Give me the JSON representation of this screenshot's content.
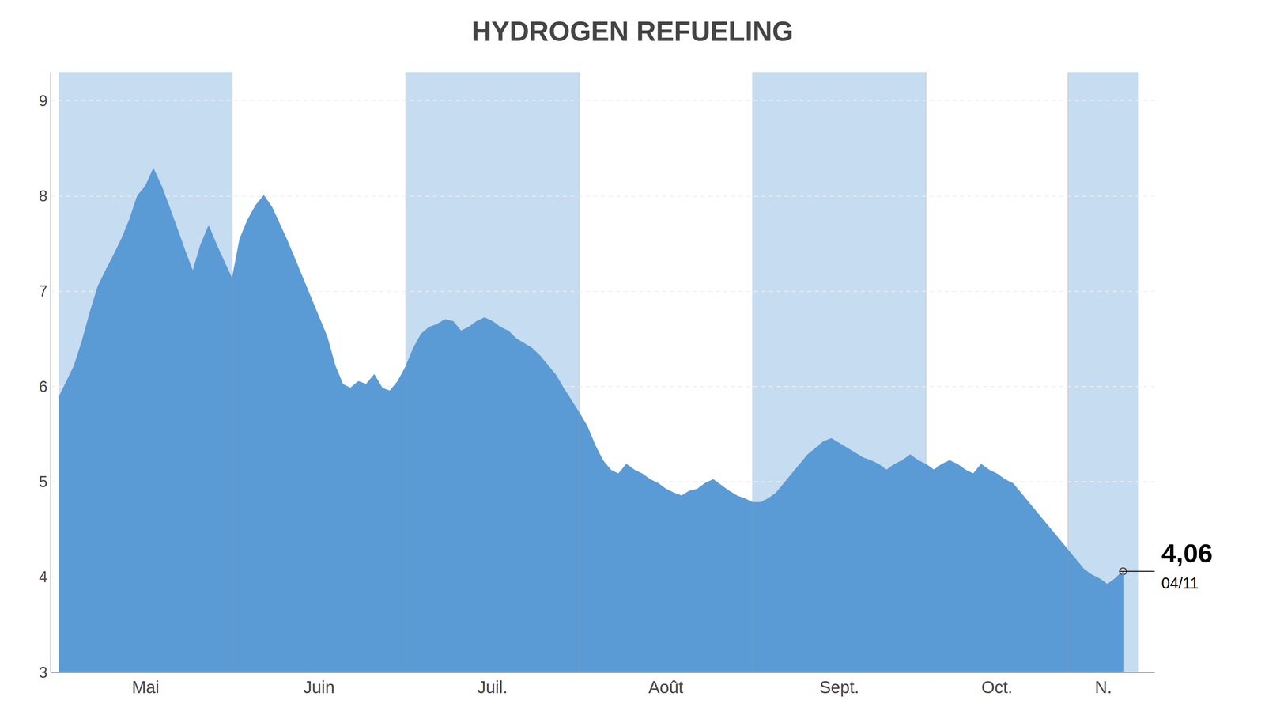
{
  "chart_data": {
    "type": "area",
    "title": "HYDROGEN REFUELING",
    "values": [
      5.88,
      6.05,
      6.22,
      6.48,
      6.78,
      7.05,
      7.22,
      7.38,
      7.55,
      7.75,
      8.0,
      8.1,
      8.28,
      8.1,
      7.88,
      7.65,
      7.42,
      7.2,
      7.48,
      7.68,
      7.48,
      7.3,
      7.12,
      7.55,
      7.75,
      7.9,
      8.0,
      7.88,
      7.7,
      7.52,
      7.32,
      7.12,
      6.92,
      6.72,
      6.52,
      6.22,
      6.02,
      5.98,
      6.05,
      6.02,
      6.12,
      5.98,
      5.95,
      6.05,
      6.2,
      6.4,
      6.55,
      6.62,
      6.65,
      6.7,
      6.68,
      6.58,
      6.62,
      6.68,
      6.72,
      6.68,
      6.62,
      6.58,
      6.5,
      6.45,
      6.4,
      6.32,
      6.22,
      6.12,
      5.98,
      5.85,
      5.72,
      5.58,
      5.38,
      5.22,
      5.12,
      5.08,
      5.18,
      5.12,
      5.08,
      5.02,
      4.98,
      4.92,
      4.88,
      4.85,
      4.9,
      4.92,
      4.98,
      5.02,
      4.96,
      4.9,
      4.85,
      4.82,
      4.78,
      4.78,
      4.82,
      4.88,
      4.98,
      5.08,
      5.18,
      5.28,
      5.35,
      5.42,
      5.45,
      5.4,
      5.35,
      5.3,
      5.25,
      5.22,
      5.18,
      5.12,
      5.18,
      5.22,
      5.28,
      5.22,
      5.18,
      5.12,
      5.18,
      5.22,
      5.18,
      5.12,
      5.08,
      5.18,
      5.12,
      5.08,
      5.02,
      4.98,
      4.88,
      4.78,
      4.68,
      4.58,
      4.48,
      4.38,
      4.28,
      4.18,
      4.08,
      4.02,
      3.98,
      3.92,
      3.98,
      4.06
    ],
    "color": "#5b9bd5",
    "xlim": [
      -1,
      139
    ],
    "xticks": [
      {
        "value": 11,
        "label": "Mai"
      },
      {
        "value": 33,
        "label": "Juin"
      },
      {
        "value": 55,
        "label": "Juil."
      },
      {
        "value": 77,
        "label": "Août"
      },
      {
        "value": 99,
        "label": "Sept."
      },
      {
        "value": 119,
        "label": "Oct."
      },
      {
        "value": 132.5,
        "label": "N."
      }
    ],
    "ylim": [
      3.0,
      9.3
    ],
    "yticks": [
      3,
      4,
      5,
      6,
      7,
      8,
      9
    ],
    "grid": true,
    "bands": [
      [
        0,
        22
      ],
      [
        44,
        66
      ],
      [
        88,
        110
      ],
      [
        128,
        137
      ]
    ],
    "month_boundaries": [
      0,
      22,
      44,
      66,
      88,
      110,
      128,
      137
    ],
    "annotations": [
      {
        "text": "4,06"
      },
      {
        "text": "04/11"
      }
    ]
  }
}
